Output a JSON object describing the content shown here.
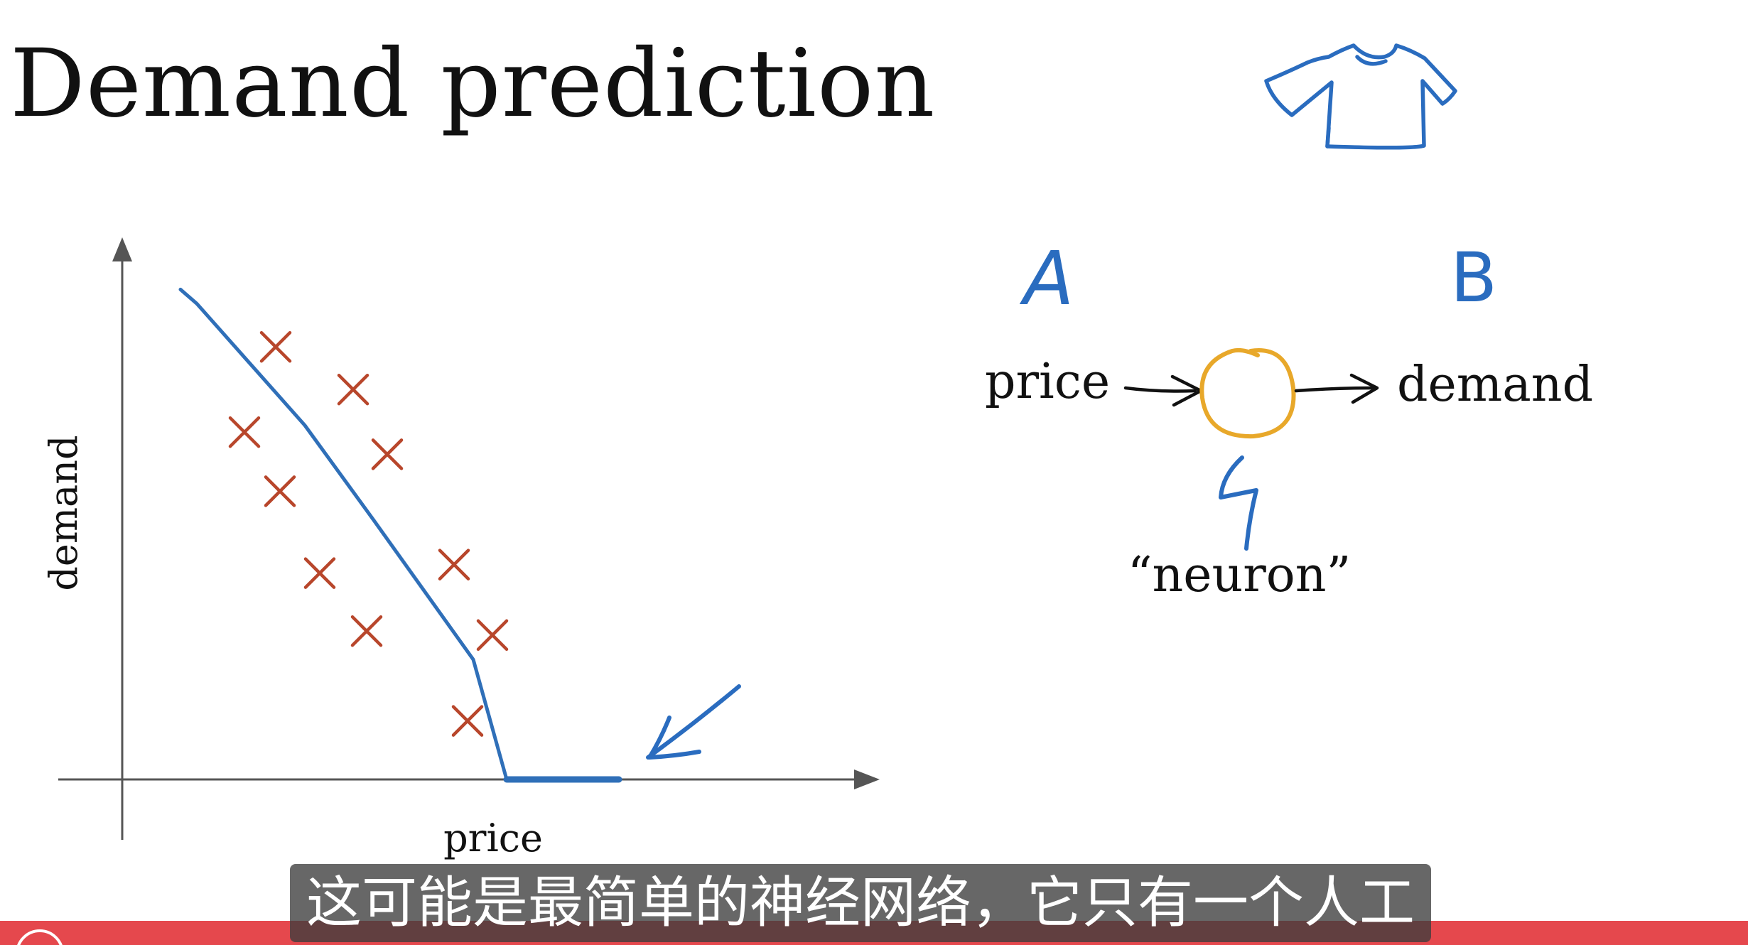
{
  "slide": {
    "title": "Demand prediction"
  },
  "chart_data": {
    "type": "scatter",
    "xlabel": "price",
    "ylabel": "demand",
    "points": [
      [
        0.216,
        0.761
      ],
      [
        0.325,
        0.686
      ],
      [
        0.172,
        0.611
      ],
      [
        0.373,
        0.572
      ],
      [
        0.222,
        0.507
      ],
      [
        0.467,
        0.378
      ],
      [
        0.278,
        0.363
      ],
      [
        0.344,
        0.261
      ],
      [
        0.521,
        0.254
      ],
      [
        0.486,
        0.103
      ]
    ],
    "fit_line": [
      [
        0.082,
        0.862
      ],
      [
        0.105,
        0.837
      ],
      [
        0.257,
        0.623
      ],
      [
        0.354,
        0.456
      ],
      [
        0.494,
        0.211
      ],
      [
        0.541,
        0.0
      ],
      [
        0.699,
        0.0
      ]
    ],
    "xlim": [
      0,
      1
    ],
    "ylim": [
      0,
      1
    ],
    "marker": "x",
    "colors": {
      "points": "#b8462b",
      "fit_line": "#2f6fb8",
      "axes": "#555555"
    }
  },
  "neuron_diagram": {
    "label_a": "A",
    "label_b": "B",
    "input": "price",
    "output": "demand",
    "node_caption": "“neuron”",
    "colors": {
      "ink": "#2a6cbf",
      "node": "#e8a82a",
      "arrow": "#111111"
    }
  },
  "doodle": {
    "icon": "t-shirt-icon"
  },
  "subtitle": {
    "text": "这可能是最简单的神经网络，它只有一个人工"
  },
  "bottom_bar": {
    "color": "#e5484d"
  }
}
